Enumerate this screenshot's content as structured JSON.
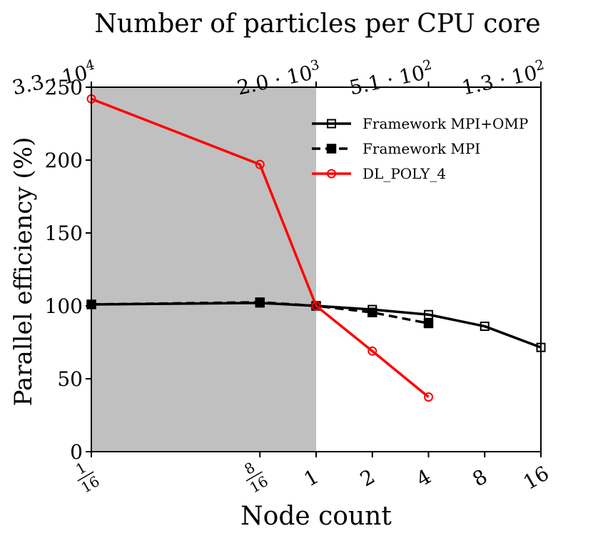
{
  "chart_data": {
    "type": "line",
    "title": "",
    "xlabel": "Node count",
    "ylabel": "Parallel efficiency (%)",
    "top_axis_label": "Number of particles per CPU core",
    "x_scale": "log2",
    "x": [
      0.0625,
      0.5,
      1,
      2,
      4,
      8,
      16
    ],
    "x_ticks": [
      {
        "value": 0.0625,
        "label_num": "1",
        "label_den": "16"
      },
      {
        "value": 0.5,
        "label_num": "8",
        "label_den": "16"
      },
      {
        "value": 1,
        "label": "1"
      },
      {
        "value": 2,
        "label": "2"
      },
      {
        "value": 4,
        "label": "4"
      },
      {
        "value": 8,
        "label": "8"
      },
      {
        "value": 16,
        "label": "16"
      }
    ],
    "top_ticks": [
      {
        "value": 0.0625,
        "mantissa": "3.3",
        "exp": "4"
      },
      {
        "value": 1,
        "mantissa": "2.0",
        "exp": "3"
      },
      {
        "value": 4,
        "mantissa": "5.1",
        "exp": "2"
      },
      {
        "value": 16,
        "mantissa": "1.3",
        "exp": "2"
      }
    ],
    "ylim": [
      0,
      250
    ],
    "y_ticks": [
      0,
      50,
      100,
      150,
      200,
      250
    ],
    "shaded_region": {
      "x_from": 0.0625,
      "x_to": 1,
      "color": "#c0c0c0"
    },
    "legend_position": "top-right",
    "series": [
      {
        "name": "Framework MPI+OMP",
        "color": "#000000",
        "line": "solid",
        "marker": "square-open",
        "points": [
          [
            0.0625,
            101
          ],
          [
            0.5,
            102
          ],
          [
            1,
            100
          ],
          [
            2,
            97.5
          ],
          [
            4,
            94
          ],
          [
            8,
            86
          ],
          [
            16,
            71.5
          ]
        ]
      },
      {
        "name": "Framework MPI",
        "color": "#000000",
        "line": "dashed",
        "marker": "square-filled",
        "points": [
          [
            0.0625,
            101
          ],
          [
            0.5,
            102.5
          ],
          [
            1,
            100
          ],
          [
            2,
            95.5
          ],
          [
            4,
            88
          ]
        ]
      },
      {
        "name": "DL_POLY_4",
        "color": "#ff0000",
        "line": "solid",
        "marker": "circle-open",
        "points": [
          [
            0.0625,
            242
          ],
          [
            0.5,
            197
          ],
          [
            1,
            100
          ],
          [
            2,
            69
          ],
          [
            4,
            37.5
          ]
        ]
      }
    ]
  }
}
